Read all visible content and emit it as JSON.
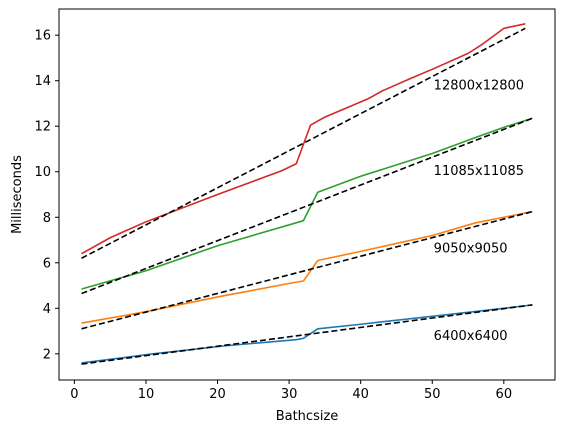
{
  "chart_data": {
    "type": "line",
    "title": "",
    "xlabel": "Bathcsize",
    "ylabel": "Milliseconds",
    "xlim": [
      -2.15,
      67.15
    ],
    "ylim": [
      0.85,
      17.15
    ],
    "xticks": [
      0,
      10,
      20,
      30,
      40,
      50,
      60
    ],
    "yticks": [
      2,
      4,
      6,
      8,
      10,
      12,
      14,
      16
    ],
    "grid": false,
    "legend": "none",
    "series": [
      {
        "color": "#1f77b4",
        "style": "solid",
        "x": [
          1,
          11,
          21,
          31,
          32,
          34,
          40,
          50,
          60,
          64
        ],
        "y": [
          1.6,
          2.0,
          2.35,
          2.62,
          2.68,
          3.1,
          3.3,
          3.65,
          4.0,
          4.15
        ]
      },
      {
        "color": "#ff7f0e",
        "style": "solid",
        "x": [
          1,
          10,
          20,
          31,
          32,
          34,
          40,
          50,
          56,
          60,
          64
        ],
        "y": [
          3.35,
          3.85,
          4.5,
          5.15,
          5.2,
          6.1,
          6.5,
          7.2,
          7.75,
          8.0,
          8.25
        ],
        "annotation": "9050x9050"
      },
      {
        "color": "#2ca02c",
        "style": "solid",
        "x": [
          1,
          10,
          20,
          32,
          34,
          40,
          46,
          50,
          56,
          60,
          64
        ],
        "y": [
          4.85,
          5.65,
          6.75,
          7.85,
          9.1,
          9.8,
          10.4,
          10.8,
          11.5,
          11.95,
          12.35
        ],
        "annotation": "11085x11085"
      },
      {
        "color": "#d62728",
        "style": "solid",
        "x": [
          1,
          5,
          10,
          20,
          29,
          31,
          33,
          35,
          38,
          41,
          43,
          47,
          50,
          55,
          57,
          60,
          63
        ],
        "y": [
          6.4,
          7.1,
          7.8,
          9.0,
          10.05,
          10.35,
          12.05,
          12.4,
          12.8,
          13.2,
          13.55,
          14.1,
          14.5,
          15.2,
          15.6,
          16.3,
          16.5
        ],
        "annotation": "12800x12800"
      },
      {
        "color": "#000000",
        "style": "dashed",
        "x": [
          1,
          64
        ],
        "y": [
          1.55,
          4.15
        ]
      },
      {
        "color": "#000000",
        "style": "dashed",
        "x": [
          1,
          64
        ],
        "y": [
          3.1,
          8.25
        ]
      },
      {
        "color": "#000000",
        "style": "dashed",
        "x": [
          1,
          64
        ],
        "y": [
          4.65,
          12.35
        ]
      },
      {
        "color": "#000000",
        "style": "dashed",
        "x": [
          1,
          63
        ],
        "y": [
          6.2,
          16.3
        ]
      }
    ],
    "annotations": [
      {
        "text": "6400x6400",
        "x": 50.2,
        "y": 2.8
      },
      {
        "text": "9050x9050",
        "x": 50.2,
        "y": 6.65
      },
      {
        "text": "11085x11085",
        "x": 50.2,
        "y": 10.05
      },
      {
        "text": "12800x12800",
        "x": 50.2,
        "y": 13.8
      }
    ]
  }
}
